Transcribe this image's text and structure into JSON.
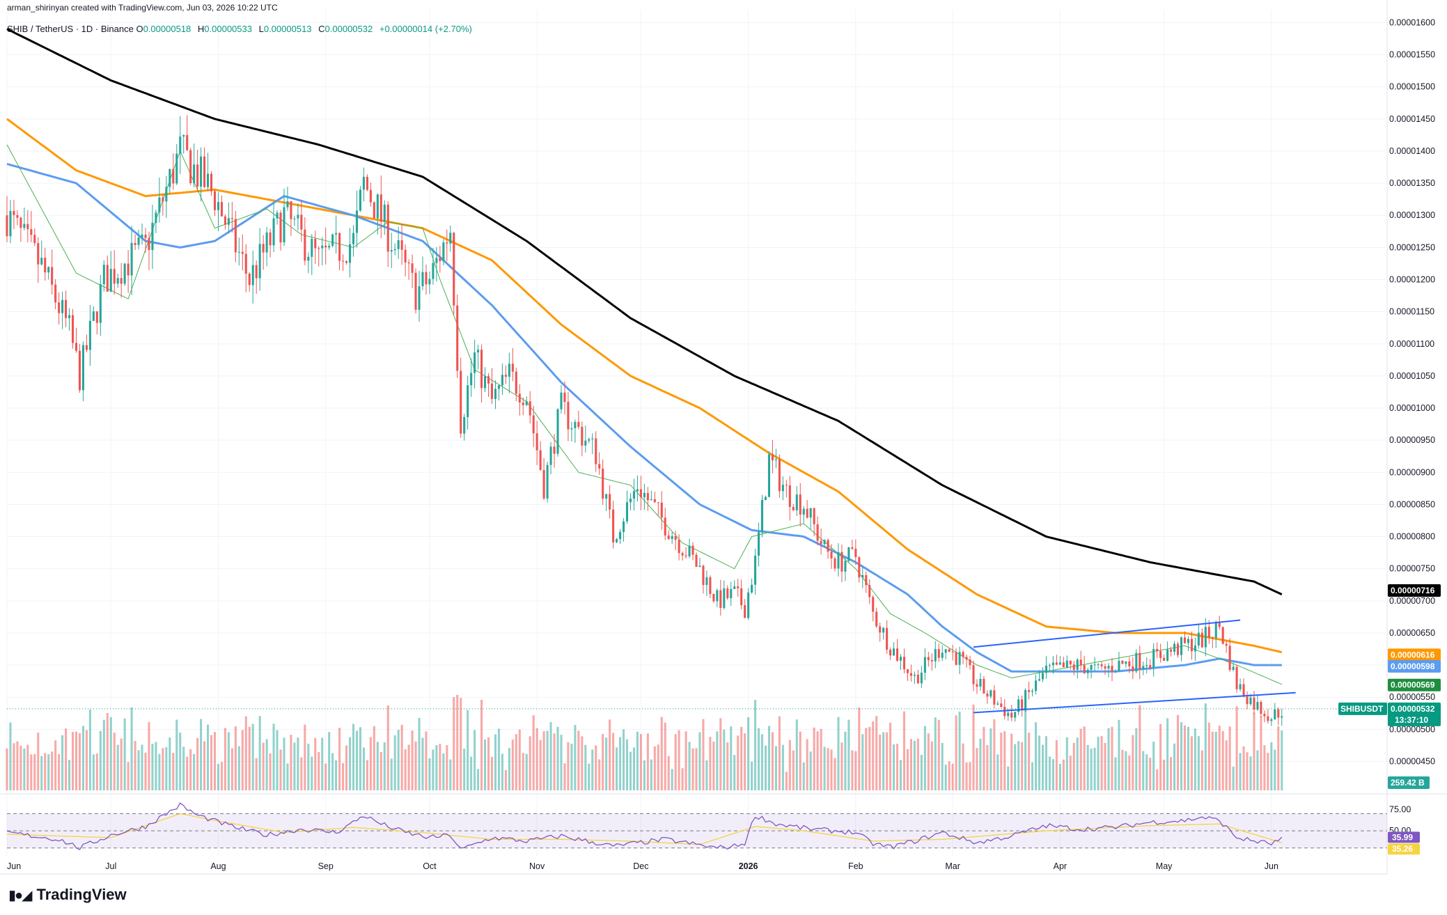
{
  "header": {
    "creator": "arman_shirinyan created with TradingView.com, Jun 03, 2026 10:22 UTC"
  },
  "ohlc": {
    "symbol": "SHIB / TetherUS · 1D · Binance",
    "o_label": "O",
    "o": "0.00000518",
    "h_label": "H",
    "h": "0.00000533",
    "l_label": "L",
    "l": "0.00000513",
    "c_label": "C",
    "c": "0.00000532",
    "change": "+0.00000014 (+2.70%)"
  },
  "footer": {
    "brand": "TradingView"
  },
  "colors": {
    "up": "#26a69a",
    "down": "#ef5350",
    "ma_black": "#000000",
    "ma_orange": "#ff9800",
    "ma_blue": "#5b9cf0",
    "ma_green": "#4caf50",
    "trendline": "#2962ff",
    "rsi": "#7e57c2",
    "rsi_ma": "#f5d442"
  },
  "chart_data": [
    {
      "type": "candlestick",
      "title": "SHIB / TetherUS · 1D · Binance",
      "y_ticks": [
        "0.00000450",
        "0.00000500",
        "0.00000550",
        "0.00000600",
        "0.00000650",
        "0.00000700",
        "0.00000750",
        "0.00000800",
        "0.00000850",
        "0.00000900",
        "0.00000950",
        "0.00001000",
        "0.00001050",
        "0.00001100",
        "0.00001150",
        "0.00001200",
        "0.00001250",
        "0.00001300",
        "0.00001350",
        "0.00001400",
        "0.00001450",
        "0.00001500",
        "0.00001550",
        "0.00001600"
      ],
      "ylim": [
        4.05e-06,
        1.62e-05
      ],
      "x_ticks": [
        "Jun",
        "Jul",
        "Aug",
        "Sep",
        "Oct",
        "Nov",
        "Dec",
        "2026",
        "Feb",
        "Mar",
        "Apr",
        "May",
        "Jun"
      ],
      "x_tick_days": [
        0,
        30,
        61,
        92,
        122,
        153,
        183,
        214,
        245,
        273,
        304,
        334,
        365
      ],
      "x_range_days": [
        0,
        398
      ],
      "price_anchors": {
        "day": [
          0,
          10,
          18,
          21,
          28,
          40,
          50,
          60,
          70,
          80,
          90,
          100,
          103,
          106,
          112,
          118,
          122,
          128,
          131,
          135,
          140,
          145,
          150,
          155,
          160,
          170,
          175,
          182,
          190,
          200,
          205,
          210,
          213,
          216,
          220,
          225,
          230,
          236,
          240,
          245,
          250,
          255,
          262,
          270,
          275,
          280,
          290,
          300,
          310,
          315,
          320,
          330,
          340,
          345,
          350,
          355,
          360,
          365,
          368
        ],
        "close": [
          1.3e-05,
          1.22e-05,
          1.12e-05,
          1.05e-05,
          1.2e-05,
          1.25e-05,
          1.4e-05,
          1.33e-05,
          1.2e-05,
          1.3e-05,
          1.23e-05,
          1.26e-05,
          1.35e-05,
          1.32e-05,
          1.25e-05,
          1.18e-05,
          1.2e-05,
          1.28e-05,
          9.8e-06,
          1.08e-05,
          1.01e-05,
          1.05e-05,
          1.02e-05,
          8.8e-06,
          1e-05,
          9.3e-06,
          8e-06,
          8.8e-06,
          8.2e-06,
          7.5e-06,
          7e-06,
          7.1e-06,
          6.9e-06,
          7.6e-06,
          9.2e-06,
          8.7e-06,
          8.5e-06,
          7.8e-06,
          7.6e-06,
          7.7e-06,
          6.8e-06,
          6.3e-06,
          5.8e-06,
          6.3e-06,
          6.1e-06,
          5.7e-06,
          5.2e-06,
          5.9e-06,
          6e-06,
          5.9e-06,
          6e-06,
          6.1e-06,
          6.3e-06,
          6.4e-06,
          6.6e-06,
          5.7e-06,
          5.4e-06,
          5.2e-06,
          5.3e-06
        ]
      },
      "moving_averages": [
        {
          "color": "#000000",
          "day": [
            0,
            30,
            60,
            90,
            120,
            150,
            180,
            210,
            240,
            270,
            300,
            330,
            360,
            368
          ],
          "value": [
            1.59e-05,
            1.51e-05,
            1.45e-05,
            1.41e-05,
            1.36e-05,
            1.26e-05,
            1.14e-05,
            1.05e-05,
            9.8e-06,
            8.8e-06,
            8e-06,
            7.6e-06,
            7.3e-06,
            7.1e-06
          ]
        },
        {
          "color": "#ff9800",
          "day": [
            0,
            20,
            40,
            60,
            80,
            100,
            120,
            140,
            160,
            180,
            200,
            220,
            240,
            260,
            280,
            300,
            320,
            340,
            360,
            368
          ],
          "value": [
            1.45e-05,
            1.37e-05,
            1.33e-05,
            1.34e-05,
            1.32e-05,
            1.3e-05,
            1.28e-05,
            1.23e-05,
            1.13e-05,
            1.05e-05,
            1e-05,
            9.3e-06,
            8.7e-06,
            7.8e-06,
            7.1e-06,
            6.6e-06,
            6.5e-06,
            6.5e-06,
            6.3e-06,
            6.2e-06
          ]
        },
        {
          "color": "#5b9cf0",
          "day": [
            0,
            20,
            40,
            50,
            60,
            80,
            100,
            120,
            140,
            160,
            180,
            200,
            215,
            230,
            245,
            260,
            270,
            280,
            290,
            300,
            320,
            340,
            350,
            360,
            368
          ],
          "value": [
            1.38e-05,
            1.35e-05,
            1.26e-05,
            1.25e-05,
            1.26e-05,
            1.33e-05,
            1.3e-05,
            1.26e-05,
            1.16e-05,
            1.04e-05,
            9.4e-06,
            8.5e-06,
            8.1e-06,
            8e-06,
            7.6e-06,
            7.1e-06,
            6.6e-06,
            6.2e-06,
            5.9e-06,
            5.9e-06,
            5.9e-06,
            6e-06,
            6.1e-06,
            6e-06,
            6e-06
          ]
        },
        {
          "color": "#4caf50",
          "day": [
            0,
            20,
            35,
            50,
            60,
            75,
            85,
            100,
            110,
            120,
            125,
            135,
            150,
            165,
            180,
            195,
            210,
            215,
            230,
            245,
            255,
            265,
            280,
            290,
            300,
            320,
            340,
            355,
            368
          ],
          "value": [
            1.41e-05,
            1.21e-05,
            1.17e-05,
            1.4e-05,
            1.28e-05,
            1.31e-05,
            1.27e-05,
            1.25e-05,
            1.29e-05,
            1.28e-05,
            1.2e-05,
            1.06e-05,
            1.01e-05,
            9e-06,
            8.8e-06,
            7.9e-06,
            7.5e-06,
            8e-06,
            8.2e-06,
            7.5e-06,
            6.8e-06,
            6.5e-06,
            6e-06,
            5.8e-06,
            5.9e-06,
            6.1e-06,
            6.3e-06,
            6e-06,
            5.7e-06
          ]
        }
      ],
      "trendlines": [
        {
          "from": {
            "day": 279,
            "value": 6.28e-06
          },
          "to": {
            "day": 356,
            "value": 6.7e-06
          }
        },
        {
          "from": {
            "day": 279,
            "value": 5.26e-06
          },
          "to": {
            "day": 372,
            "value": 5.57e-06
          }
        }
      ],
      "price_tags": [
        {
          "label": "0.00000716",
          "value": 7.16e-06,
          "color": "#000000"
        },
        {
          "label": "0.00000616",
          "value": 6.16e-06,
          "color": "#ff9800"
        },
        {
          "label": "0.00000598",
          "value": 5.98e-06,
          "color": "#5b9cf0"
        },
        {
          "label": "0.00000569",
          "value": 5.69e-06,
          "color": "#1e8e3e"
        }
      ],
      "last_price_tag": {
        "symbol": "SHIBUSDT",
        "label": "0.00000532",
        "countdown": "13:37:10",
        "value": 5.32e-06
      },
      "volume_tag": "259.42 B"
    },
    {
      "type": "line",
      "title": "",
      "y_ticks": [
        "75.00",
        "50.00"
      ],
      "ylim": [
        20,
        85
      ],
      "levels": [
        70,
        50,
        30
      ],
      "rsi_anchors": {
        "day": [
          0,
          15,
          21,
          30,
          40,
          50,
          55,
          65,
          75,
          85,
          95,
          100,
          103,
          108,
          115,
          122,
          128,
          131,
          140,
          150,
          160,
          175,
          190,
          205,
          210,
          213,
          216,
          222,
          232,
          245,
          250,
          255,
          262,
          270,
          280,
          290,
          300,
          310,
          320,
          330,
          340,
          345,
          350,
          355,
          360,
          365,
          368
        ],
        "value": [
          48,
          40,
          30,
          45,
          55,
          80,
          68,
          55,
          45,
          52,
          48,
          60,
          68,
          58,
          48,
          42,
          45,
          28,
          42,
          38,
          44,
          32,
          40,
          30,
          32,
          36,
          68,
          58,
          52,
          48,
          35,
          31,
          38,
          48,
          36,
          44,
          56,
          52,
          54,
          60,
          62,
          66,
          62,
          42,
          38,
          35,
          40
        ]
      },
      "rsi_ma_anchors": {
        "day": [
          0,
          30,
          50,
          60,
          80,
          100,
          120,
          140,
          160,
          180,
          200,
          216,
          230,
          250,
          270,
          300,
          330,
          350,
          368
        ],
        "value": [
          46,
          42,
          70,
          62,
          48,
          54,
          48,
          40,
          40,
          38,
          34,
          55,
          50,
          38,
          40,
          50,
          56,
          58,
          36
        ]
      },
      "value_tags": [
        {
          "label": "35.99",
          "value": 35.99,
          "color": "#7e57c2"
        },
        {
          "label": "35.26",
          "value": 35.26,
          "color": "#f5d442"
        }
      ]
    }
  ]
}
